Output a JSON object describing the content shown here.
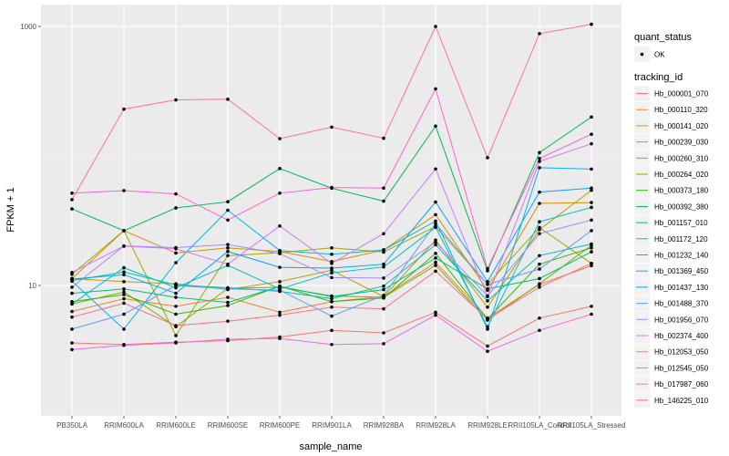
{
  "chart_data": {
    "type": "line",
    "title": "",
    "xlabel": "sample_name",
    "ylabel": "FPKM + 1",
    "yscale": "log10",
    "ylim": [
      2.5,
      1100
    ],
    "y_ticks": [
      {
        "value": 10,
        "label": "10"
      },
      {
        "value": 1000,
        "label": "1000"
      }
    ],
    "y_minor_gridlines": [
      1,
      100
    ],
    "grid": true,
    "legend_placement": "right",
    "categories": [
      "PB350LA",
      "RRIM600LA",
      "RRIM600LE",
      "RRIM600SE",
      "RRIM600PE",
      "RRIM901LA",
      "RRIM928BA",
      "RRIM928LA",
      "RRIM928LE",
      "RRII105LA_Control",
      "RRII105LA_Stressed"
    ],
    "point_legend": {
      "title": "quant_status",
      "entries": [
        "OK"
      ]
    },
    "line_legend_title": "tracking_id",
    "series": [
      {
        "name": "Hb_000001_070",
        "color": "#F8766D",
        "values": [
          3.6,
          3.5,
          3.65,
          3.75,
          4.0,
          4.5,
          4.3,
          6.2,
          3.4,
          5.6,
          6.9
        ]
      },
      {
        "name": "Hb_000110_320",
        "color": "#EA8331",
        "values": [
          6.3,
          7.9,
          6.9,
          8.1,
          6.2,
          7.5,
          8.2,
          15.1,
          5.6,
          10.2,
          14.2
        ]
      },
      {
        "name": "Hb_000141_020",
        "color": "#D89000",
        "values": [
          11.3,
          26.5,
          17.8,
          19.5,
          18.3,
          15.3,
          18.8,
          35.2,
          9.2,
          43.0,
          43.7
        ]
      },
      {
        "name": "Hb_000239_030",
        "color": "#C09B00",
        "values": [
          11.3,
          10.7,
          10.3,
          9.3,
          10.7,
          13.1,
          8.2,
          22.4,
          6.8,
          27.0,
          54.3
        ]
      },
      {
        "name": "Hb_000260_310",
        "color": "#A3A500",
        "values": [
          12.2,
          26.5,
          4.1,
          17.0,
          17.9,
          19.5,
          18.1,
          28.5,
          10.2,
          28.0,
          14.8
        ]
      },
      {
        "name": "Hb_000264_020",
        "color": "#7CAE00",
        "values": [
          7.2,
          8.9,
          4.8,
          9.5,
          9.7,
          8.3,
          8.1,
          14.3,
          5.4,
          10.3,
          20.4
        ]
      },
      {
        "name": "Hb_000373_180",
        "color": "#39B600",
        "values": [
          7.5,
          8.5,
          6.0,
          7.0,
          9.9,
          7.5,
          8.0,
          17.7,
          5.5,
          14.6,
          19.5
        ]
      },
      {
        "name": "Hb_000392_380",
        "color": "#00BB4E",
        "values": [
          39.0,
          26.5,
          39.7,
          44.3,
          80.0,
          56.3,
          44.8,
          170.0,
          13.0,
          106.2,
          200.0
        ]
      },
      {
        "name": "Hb_001157_010",
        "color": "#00BF7D",
        "values": [
          8.7,
          9.4,
          8.1,
          7.4,
          9.8,
          8.2,
          9.3,
          16.3,
          9.4,
          11.3,
          18.2
        ]
      },
      {
        "name": "Hb_001172_120",
        "color": "#00C1A3",
        "values": [
          10.9,
          12.7,
          10.1,
          9.6,
          9.0,
          7.9,
          9.9,
          20.6,
          7.6,
          17.0,
          20.9
        ]
      },
      {
        "name": "Hb_001232_140",
        "color": "#00BFC4",
        "values": [
          7.2,
          13.7,
          9.6,
          14.3,
          9.4,
          12.5,
          13.9,
          28.1,
          4.8,
          31.0,
          40.1
        ]
      },
      {
        "name": "Hb_001369_450",
        "color": "#00B4EF",
        "values": [
          10.8,
          4.6,
          15.0,
          38.1,
          18.6,
          17.4,
          18.8,
          31.4,
          4.6,
          81.1,
          79.2
        ]
      },
      {
        "name": "Hb_001437_130",
        "color": "#00A5FF",
        "values": [
          11.2,
          12.1,
          8.7,
          18.3,
          13.8,
          13.6,
          14.6,
          44.1,
          10.7,
          52.6,
          56.4
        ]
      },
      {
        "name": "Hb_001488_370",
        "color": "#619CFF",
        "values": [
          4.6,
          6.0,
          10.0,
          9.4,
          9.2,
          5.8,
          8.4,
          30.0,
          10.2,
          13.4,
          26.5
        ]
      },
      {
        "name": "Hb_001956_070",
        "color": "#9F8CFF",
        "values": [
          9.7,
          20.2,
          19.6,
          20.7,
          17.6,
          11.5,
          11.4,
          21.6,
          8.3,
          25.1,
          32.0
        ]
      },
      {
        "name": "Hb_002374_400",
        "color": "#D177FF",
        "values": [
          12.6,
          20.1,
          19.2,
          14.6,
          28.8,
          14.8,
          25.1,
          79.3,
          8.2,
          90.8,
          124.2
        ]
      },
      {
        "name": "Hb_012053_050",
        "color": "#F365E6",
        "values": [
          3.2,
          3.45,
          3.6,
          3.85,
          3.9,
          3.5,
          3.55,
          5.9,
          3.1,
          4.5,
          6.0
        ]
      },
      {
        "name": "Hb_012545_050",
        "color": "#FF61C7",
        "values": [
          51.6,
          54.0,
          50.9,
          32.0,
          51.6,
          57.1,
          56.5,
          330.0,
          13.5,
          95.5,
          147.1
        ]
      },
      {
        "name": "Hb_017987_060",
        "color": "#FF6EA6",
        "values": [
          46.0,
          230.0,
          271.0,
          274.0,
          136.0,
          167.0,
          137.0,
          1000.0,
          97.0,
          880.0,
          1040.0
        ]
      },
      {
        "name": "Hb_146225_010",
        "color": "#FF6C91",
        "values": [
          5.7,
          7.3,
          4.9,
          5.3,
          5.9,
          6.8,
          6.6,
          12.9,
          5.5,
          9.7,
          14.8
        ]
      }
    ]
  }
}
